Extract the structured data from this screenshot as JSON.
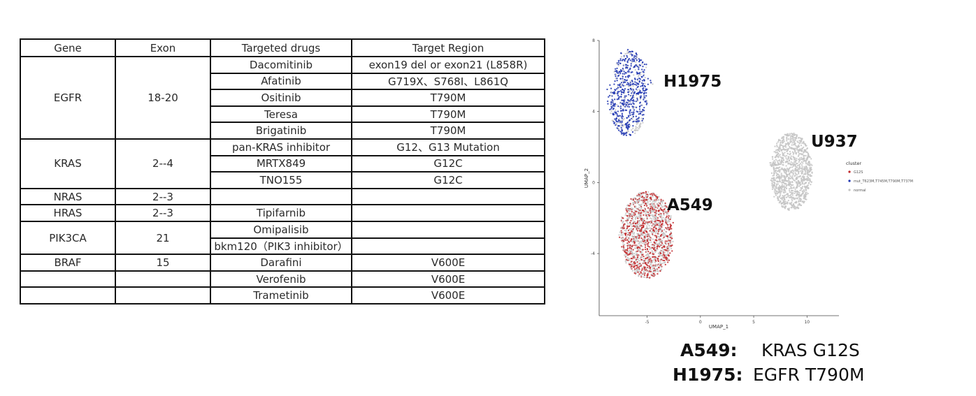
{
  "table": {
    "headers": [
      "Gene",
      "Exon",
      "Targeted drugs",
      "Target Region"
    ],
    "rows": [
      {
        "gene": "EGFR",
        "exon": "18-20",
        "span": 5,
        "drugs": [
          {
            "drug": "Dacomitinib",
            "region": "exon19 del or exon21 (L858R)"
          },
          {
            "drug": "Afatinib",
            "region": "G719X、S768I、L861Q"
          },
          {
            "drug": "Ositinib",
            "region": "T790M"
          },
          {
            "drug": "Teresa",
            "region": "T790M"
          },
          {
            "drug": "Brigatinib",
            "region": "T790M"
          }
        ]
      },
      {
        "gene": "KRAS",
        "exon": "2--4",
        "span": 3,
        "drugs": [
          {
            "drug": "pan-KRAS inhibitor",
            "region": "G12、G13 Mutation"
          },
          {
            "drug": "MRTX849",
            "region": "G12C"
          },
          {
            "drug": "TNO155",
            "region": "G12C"
          }
        ]
      },
      {
        "gene": "NRAS",
        "exon": "2--3",
        "span": 1,
        "drugs": [
          {
            "drug": "",
            "region": ""
          }
        ]
      },
      {
        "gene": "HRAS",
        "exon": "2--3",
        "span": 1,
        "drugs": [
          {
            "drug": "Tipifarnib",
            "region": ""
          }
        ]
      },
      {
        "gene": "PIK3CA",
        "exon": "21",
        "span": 2,
        "drugs": [
          {
            "drug": "Omipalisib",
            "region": ""
          },
          {
            "drug": "bkm120（PIK3 inhibitor）",
            "region": ""
          }
        ]
      },
      {
        "gene": "BRAF",
        "exon": "15",
        "span": 1,
        "drugs": [
          {
            "drug": "Darafini",
            "region": "V600E"
          }
        ]
      },
      {
        "gene": "",
        "exon": "",
        "span": 1,
        "drugs": [
          {
            "drug": "Verofenib",
            "region": "V600E"
          }
        ]
      },
      {
        "gene": "",
        "exon": "",
        "span": 1,
        "drugs": [
          {
            "drug": "Trametinib",
            "region": "V600E"
          }
        ]
      }
    ]
  },
  "chart_data": {
    "type": "scatter",
    "xlabel": "UMAP_1",
    "ylabel": "UMAP_2",
    "xlim": [
      -9.5,
      13
    ],
    "ylim": [
      -7.5,
      8
    ],
    "xticks": [
      -5,
      0,
      5,
      10
    ],
    "yticks": [
      -4,
      0,
      4,
      8
    ],
    "legend": {
      "title": "cluster",
      "position": "right",
      "entries": [
        {
          "name": "G12S",
          "color": "#c0282a"
        },
        {
          "name": "mut_T623M,T745M,T790M,T737M",
          "color": "#1f35b0"
        },
        {
          "name": "normal",
          "color": "#c4c4c4"
        }
      ]
    },
    "clusters": [
      {
        "label": "H1975",
        "center": [
          -6.5,
          5
        ],
        "extent": [
          -8.8,
          -4.8,
          2.6,
          7.5
        ],
        "dominant": "mut_T623M,T745M,T790M,T737M",
        "count": 650
      },
      {
        "label": "U937",
        "center": [
          8.3,
          0.2
        ],
        "extent": [
          6.4,
          10.6,
          -1.6,
          2.8
        ],
        "dominant": "normal",
        "count": 1100
      },
      {
        "label": "A549",
        "center": [
          -5,
          -2.6
        ],
        "extent": [
          -7.7,
          -2.4,
          -5.4,
          -0.5
        ],
        "dominant": "G12S",
        "count": 1500
      }
    ]
  },
  "captions": [
    {
      "label": "A549:",
      "value": "KRAS G12S"
    },
    {
      "label": "H1975:",
      "value": "EGFR T790M"
    }
  ]
}
